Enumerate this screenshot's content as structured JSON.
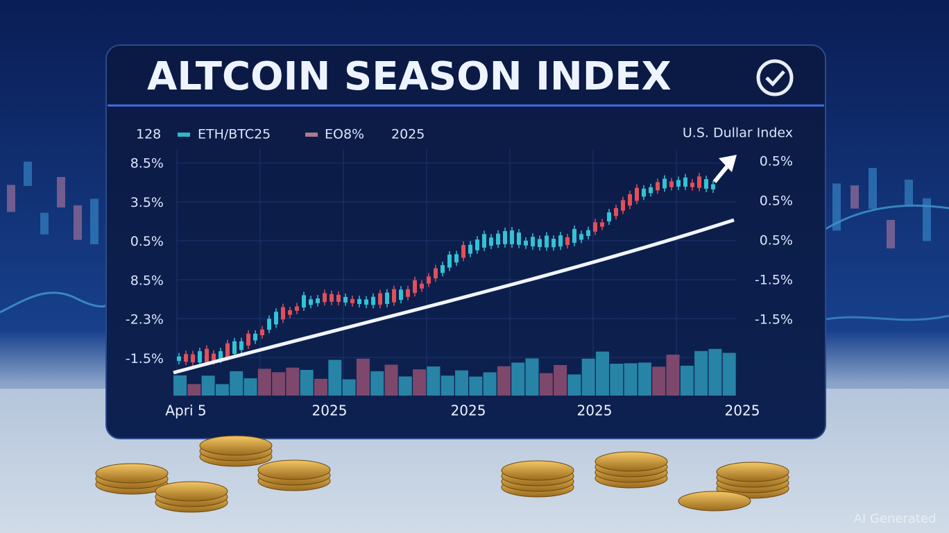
{
  "title": "ALTCOIN SEASON INDEX",
  "legend": {
    "prefix": "128",
    "items": [
      "ETH/BTC25",
      "EO8%"
    ],
    "suffix": "2025"
  },
  "right_axis_title": "U.S. Dullar Index",
  "left_labels": [
    "8.5%",
    "3.5%",
    "0.5%",
    "8.5%",
    "-2.3%",
    "-1.5%"
  ],
  "right_labels": [
    "0.5%",
    "0.5%",
    "0.5%",
    "-1.5%",
    "-1.5%"
  ],
  "x_labels": [
    "Apri 5",
    "2025",
    "2025",
    "2025",
    "2025"
  ],
  "watermark": "AI Generated"
}
